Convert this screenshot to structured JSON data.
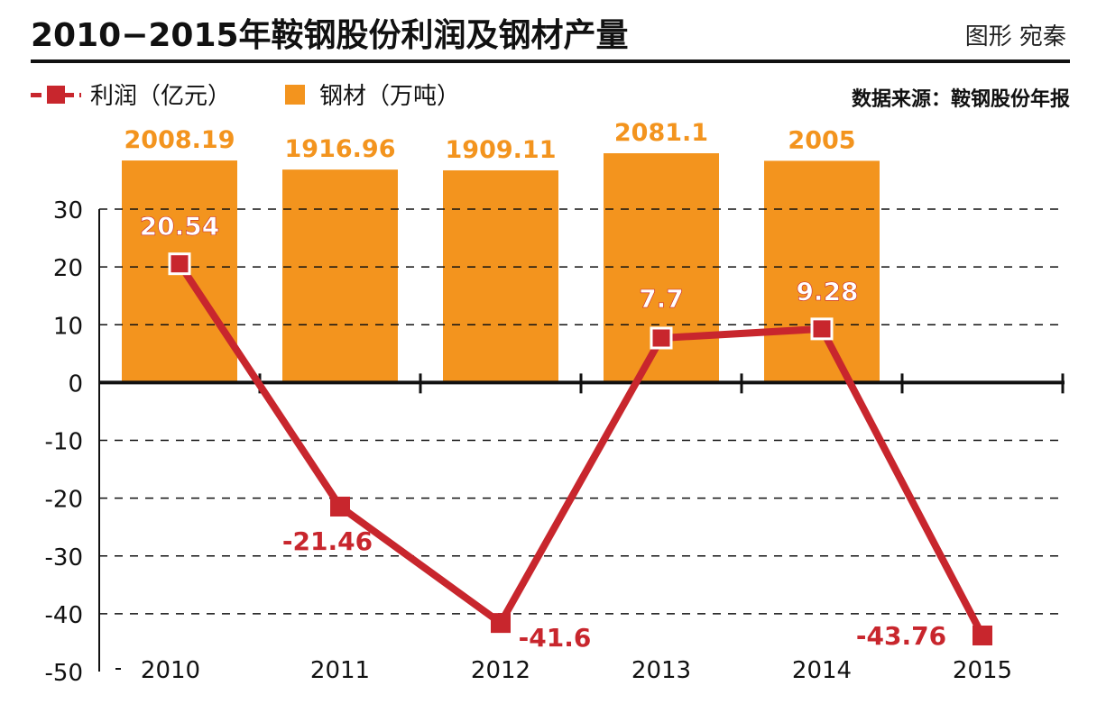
{
  "header": {
    "title": "2010−2015年鞍钢股份利润及钢材产量",
    "credit": "图形 宛秦",
    "source": "数据来源：鞍钢股份年报"
  },
  "legend": {
    "profit_label": "利润（亿元）",
    "steel_label": "钢材（万吨）"
  },
  "colors": {
    "bar": "#f3941e",
    "line": "#c8262d"
  },
  "chart_data": {
    "type": "bar+line",
    "categories": [
      "2010",
      "2011",
      "2012",
      "2013",
      "2014",
      "2015"
    ],
    "series": [
      {
        "name": "钢材（万吨）",
        "type": "bar",
        "values": [
          2008.19,
          1916.96,
          1909.11,
          2081.1,
          2005,
          null
        ],
        "labels": [
          "2008.19",
          "1916.96",
          "1909.11",
          "2081.1",
          "2005",
          ""
        ]
      },
      {
        "name": "利润（亿元）",
        "type": "line",
        "values": [
          20.54,
          -21.46,
          -41.6,
          7.7,
          9.28,
          -43.76
        ],
        "labels": [
          "20.54",
          "-21.46",
          "-41.6",
          "7.7",
          "9.28",
          "-43.76"
        ]
      }
    ],
    "y_ticks": [
      "30",
      "20",
      "10",
      "0",
      "-10",
      "-20",
      "-30",
      "-40",
      "-50"
    ],
    "ylim": [
      -50,
      30
    ],
    "grid": "dashed horizontal"
  }
}
